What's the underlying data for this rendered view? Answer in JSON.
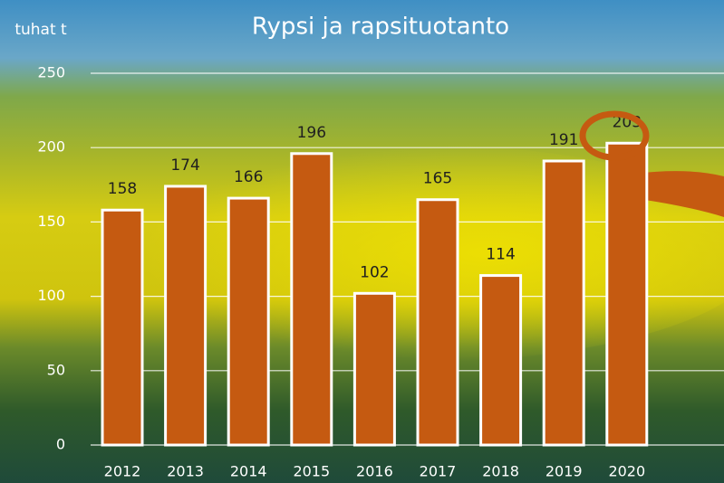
{
  "chart_data": {
    "type": "bar",
    "title": "Rypsi ja rapsituotanto",
    "y_label": "tuhat t",
    "categories": [
      "2012",
      "2013",
      "2014",
      "2015",
      "2016",
      "2017",
      "2018",
      "2019",
      "2020"
    ],
    "values": [
      158,
      174,
      166,
      196,
      102,
      165,
      114,
      191,
      203
    ],
    "color": "#c55a11",
    "ylim": [
      0,
      250
    ],
    "yticks": [
      0,
      50,
      100,
      150,
      200,
      250
    ],
    "grid": true
  }
}
